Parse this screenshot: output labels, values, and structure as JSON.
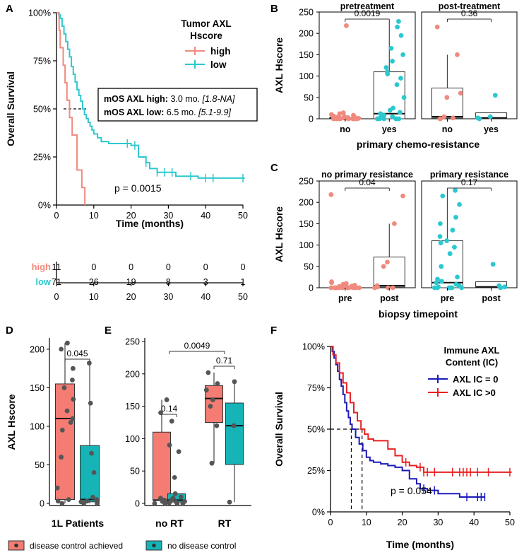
{
  "colors": {
    "red": "#f08a7e",
    "teal": "#2cc8cf",
    "boxred": "#f47c72",
    "boxteal": "#16b3b7",
    "blue": "#1a1ab8",
    "kmred": "#e82020",
    "grey": "#666666"
  },
  "chart_data": [
    {
      "panel": "A",
      "type": "line",
      "subtype": "kaplan-meier",
      "ylabel": "Overall Survival",
      "xlabel": "Time (months)",
      "yticks": [
        "100%",
        "75%",
        "50%",
        "25%",
        "0%"
      ],
      "xticks": [
        "0",
        "10",
        "20",
        "30",
        "40",
        "50"
      ],
      "xlim": [
        0,
        50
      ],
      "ylim": [
        0,
        1
      ],
      "legend_title": "Tumor AXL Hscore",
      "series": [
        {
          "name": "high",
          "color_key": "red",
          "x": [
            0,
            0.7,
            1.0,
            1.8,
            2.3,
            2.8,
            3.5,
            4.2,
            5.5,
            6.8,
            7.6
          ],
          "y": [
            1.0,
            0.909,
            0.818,
            0.727,
            0.636,
            0.545,
            0.455,
            0.364,
            0.182,
            0.091,
            0.0
          ]
        },
        {
          "name": "low",
          "color_key": "teal",
          "x": [
            0,
            0.6,
            1.0,
            1.5,
            2.0,
            2.5,
            3.0,
            3.5,
            4.0,
            4.5,
            5.0,
            5.5,
            6.0,
            6.5,
            7.0,
            7.5,
            8.0,
            8.5,
            9.0,
            9.5,
            10,
            11,
            12,
            13,
            14,
            16,
            18,
            20,
            22,
            24,
            25,
            27,
            30,
            32,
            35,
            36,
            38,
            50.5
          ],
          "y": [
            1.0,
            0.99,
            0.97,
            0.93,
            0.89,
            0.85,
            0.81,
            0.77,
            0.72,
            0.68,
            0.64,
            0.6,
            0.57,
            0.54,
            0.5,
            0.47,
            0.45,
            0.43,
            0.41,
            0.39,
            0.37,
            0.35,
            0.33,
            0.33,
            0.32,
            0.32,
            0.32,
            0.31,
            0.25,
            0.22,
            0.19,
            0.17,
            0.17,
            0.15,
            0.15,
            0.15,
            0.14,
            0.14
          ],
          "censor_x": [
            19,
            21,
            24,
            27,
            29,
            31,
            36,
            40,
            42,
            50
          ]
        }
      ],
      "annotation_box": [
        {
          "label": "mOS AXL high:",
          "value": "3.0 mo.",
          "ci": "[1.8-NA]"
        },
        {
          "label": "mOS AXL low:",
          "value": "6.5 mo.",
          "ci": "[5.1-9.9]"
        }
      ],
      "pvalue": "p = 0.0015",
      "risk_table": {
        "rows": [
          {
            "label": "high",
            "color_key": "red",
            "values": [
              "11",
              "0",
              "0",
              "0",
              "0",
              "0"
            ]
          },
          {
            "label": "low",
            "color_key": "teal",
            "values": [
              "71",
              "26",
              "19",
              "8",
              "3",
              "1"
            ]
          }
        ],
        "xticks": [
          "0",
          "10",
          "20",
          "30",
          "40",
          "50"
        ]
      }
    },
    {
      "panel": "B",
      "type": "box",
      "ylabel": "AXL Hscore",
      "xlabel": "primary chemo-resistance",
      "yticks": [
        "0",
        "50",
        "100",
        "150",
        "200",
        "250"
      ],
      "ylim": [
        0,
        250
      ],
      "facets": [
        {
          "title": "pretreatment",
          "pvalue": "0.0019",
          "categories": [
            "no",
            "yes"
          ],
          "boxes": [
            {
              "q1": 0,
              "med": 1,
              "q3": 3,
              "lo": 0,
              "hi": 10,
              "color_key": "red",
              "points": [
                0,
                0,
                0,
                0,
                0,
                0,
                0,
                0,
                0,
                0,
                0,
                1,
                1,
                2,
                2,
                3,
                3,
                4,
                5,
                6,
                8,
                10,
                12,
                14,
                218
              ]
            },
            {
              "q1": 0,
              "med": 12,
              "q3": 110,
              "lo": 0,
              "hi": 228,
              "color_key": "teal",
              "points": [
                0,
                0,
                0,
                0,
                0,
                0,
                2,
                5,
                8,
                12,
                15,
                20,
                25,
                50,
                80,
                95,
                105,
                110,
                120,
                135,
                150,
                165,
                195,
                215,
                228
              ]
            }
          ]
        },
        {
          "title": "post-treatment",
          "pvalue": "0.36",
          "categories": [
            "no",
            "yes"
          ],
          "boxes": [
            {
              "q1": 2,
              "med": 5,
              "q3": 72,
              "lo": 0,
              "hi": 150,
              "color_key": "red",
              "points": [
                0,
                0,
                0,
                2,
                5,
                50,
                60,
                150,
                215
              ]
            },
            {
              "q1": 0,
              "med": 2,
              "q3": 14,
              "lo": 0,
              "hi": 14,
              "color_key": "teal",
              "points": [
                0,
                2,
                5,
                55
              ]
            }
          ]
        }
      ]
    },
    {
      "panel": "C",
      "type": "box",
      "ylabel": "AXL Hscore",
      "xlabel": "biopsy timepoint",
      "yticks": [
        "0",
        "50",
        "100",
        "150",
        "200",
        "250"
      ],
      "ylim": [
        0,
        250
      ],
      "facets": [
        {
          "title": "no primary resistance",
          "pvalue": "0.04",
          "categories": [
            "pre",
            "post"
          ],
          "boxes": [
            {
              "q1": 0,
              "med": 1,
              "q3": 3,
              "lo": 0,
              "hi": 10,
              "color_key": "red",
              "points": [
                0,
                0,
                0,
                0,
                0,
                0,
                0,
                0,
                0,
                0,
                0,
                1,
                1,
                2,
                2,
                3,
                3,
                4,
                5,
                6,
                8,
                10,
                12,
                14,
                218
              ]
            },
            {
              "q1": 2,
              "med": 5,
              "q3": 72,
              "lo": 0,
              "hi": 150,
              "color_key": "red",
              "points": [
                0,
                0,
                0,
                2,
                5,
                50,
                60,
                150,
                215
              ]
            }
          ]
        },
        {
          "title": "primary resistance",
          "pvalue": "0.17",
          "categories": [
            "pre",
            "post"
          ],
          "boxes": [
            {
              "q1": 0,
              "med": 12,
              "q3": 110,
              "lo": 0,
              "hi": 228,
              "color_key": "teal",
              "points": [
                0,
                0,
                0,
                0,
                0,
                0,
                2,
                5,
                8,
                12,
                15,
                20,
                25,
                50,
                80,
                95,
                105,
                110,
                120,
                135,
                150,
                165,
                195,
                215,
                228
              ]
            },
            {
              "q1": 0,
              "med": 2,
              "q3": 14,
              "lo": 0,
              "hi": 14,
              "color_key": "teal",
              "points": [
                0,
                2,
                5,
                55
              ]
            }
          ]
        }
      ]
    },
    {
      "panel": "D",
      "type": "box",
      "ylabel": "AXL Hscore",
      "yticks": [
        "0",
        "50",
        "100",
        "150",
        "200"
      ],
      "ylim": [
        0,
        210
      ],
      "category": "1L Patients",
      "pvalue": "0.045",
      "boxes": [
        {
          "q1": 5,
          "med": 110,
          "q3": 155,
          "lo": 0,
          "hi": 208,
          "color_key": "boxred",
          "points": [
            0,
            3,
            5,
            20,
            60,
            95,
            105,
            110,
            120,
            135,
            150,
            160,
            175,
            200,
            208
          ]
        },
        {
          "q1": 2,
          "med": 5,
          "q3": 75,
          "lo": 0,
          "hi": 182,
          "color_key": "boxteal",
          "points": [
            0,
            0,
            1,
            2,
            3,
            5,
            8,
            40,
            65,
            130,
            182
          ]
        }
      ]
    },
    {
      "panel": "E",
      "type": "box",
      "yticks": [
        "0",
        "50",
        "100",
        "150",
        "200",
        "250"
      ],
      "ylim": [
        0,
        250
      ],
      "categories": [
        "no RT",
        "RT"
      ],
      "pvalues": {
        "noRT": "0.14",
        "RT": "0.71",
        "across": "0.0049"
      },
      "boxes": [
        {
          "group": "no RT",
          "q1": 5,
          "med": 5,
          "q3": 110,
          "lo": 0,
          "hi": 160,
          "color_key": "boxred",
          "points": [
            0,
            0,
            2,
            3,
            5,
            5,
            8,
            90,
            140,
            160
          ]
        },
        {
          "group": "no RT",
          "q1": 2,
          "med": 5,
          "q3": 15,
          "lo": 0,
          "hi": 15,
          "color_key": "boxteal",
          "points": [
            0,
            0,
            1,
            2,
            3,
            5,
            8,
            10,
            15,
            40,
            80,
            127
          ]
        },
        {
          "group": "RT",
          "q1": 125,
          "med": 162,
          "q3": 182,
          "lo": 62,
          "hi": 202,
          "color_key": "boxred",
          "points": [
            62,
            120,
            150,
            160,
            175,
            185,
            202
          ]
        },
        {
          "group": "RT",
          "q1": 60,
          "med": 120,
          "q3": 155,
          "lo": 2,
          "hi": 188,
          "color_key": "boxteal",
          "points": [
            2,
            120,
            188
          ]
        }
      ]
    },
    {
      "panel": "F",
      "type": "line",
      "subtype": "kaplan-meier",
      "ylabel": "Overall Survival",
      "xlabel": "Time (months)",
      "yticks": [
        "100%",
        "75%",
        "50%",
        "25%",
        "0%"
      ],
      "xticks": [
        "0",
        "10",
        "20",
        "30",
        "40",
        "50"
      ],
      "xlim": [
        0,
        50
      ],
      "ylim": [
        0,
        1
      ],
      "legend_title": "Immune AXL Content (IC)",
      "series": [
        {
          "name": "AXL IC = 0",
          "color_key": "blue",
          "x": [
            0,
            0.5,
            1,
            1.5,
            2,
            2.5,
            3,
            3.5,
            4,
            4.5,
            5,
            5.5,
            6,
            7,
            8,
            9,
            10,
            11,
            12,
            14,
            16,
            18,
            20,
            22,
            24,
            25,
            27,
            30,
            33,
            36,
            40,
            43
          ],
          "y": [
            1.0,
            0.97,
            0.93,
            0.89,
            0.85,
            0.8,
            0.76,
            0.71,
            0.66,
            0.61,
            0.57,
            0.53,
            0.5,
            0.45,
            0.41,
            0.37,
            0.33,
            0.31,
            0.3,
            0.29,
            0.28,
            0.27,
            0.25,
            0.2,
            0.17,
            0.14,
            0.13,
            0.11,
            0.11,
            0.09,
            0.09,
            0.09
          ],
          "censor_x": [
            26,
            29,
            38,
            41,
            42,
            43
          ]
        },
        {
          "name": "AXL IC >0",
          "color_key": "kmred",
          "x": [
            0,
            0.7,
            1.5,
            2.5,
            3.5,
            4.5,
            5.5,
            6.5,
            7.5,
            8.5,
            9.5,
            10.5,
            12,
            14,
            16,
            18,
            20,
            22,
            24,
            26,
            30,
            50.5
          ],
          "y": [
            1.0,
            0.95,
            0.9,
            0.84,
            0.78,
            0.72,
            0.66,
            0.6,
            0.55,
            0.5,
            0.47,
            0.44,
            0.43,
            0.43,
            0.38,
            0.34,
            0.3,
            0.28,
            0.27,
            0.24,
            0.24,
            0.24
          ],
          "censor_x": [
            21,
            25,
            26,
            27,
            29,
            34,
            36,
            37,
            38,
            39,
            41,
            44,
            50
          ]
        }
      ],
      "medians": [
        5.8,
        8.8
      ],
      "pvalue": "p = 0.054"
    }
  ],
  "legend_bottom": [
    {
      "label": "disease control achieved",
      "color_key": "boxred"
    },
    {
      "label": "no disease control",
      "color_key": "boxteal"
    }
  ]
}
